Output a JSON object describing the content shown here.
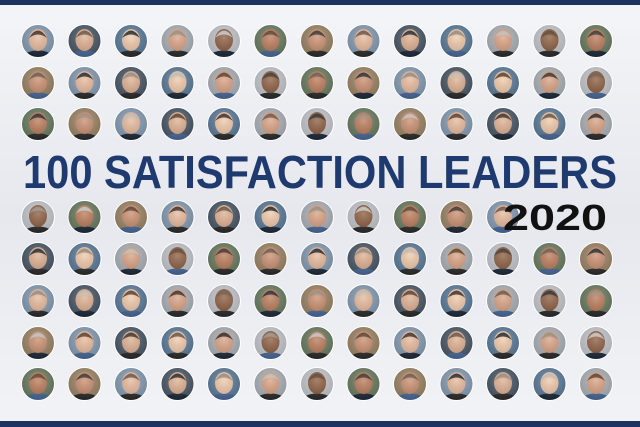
{
  "header": {
    "title": "100 SATISFACTION LEADERS",
    "year": "2020"
  }
}
